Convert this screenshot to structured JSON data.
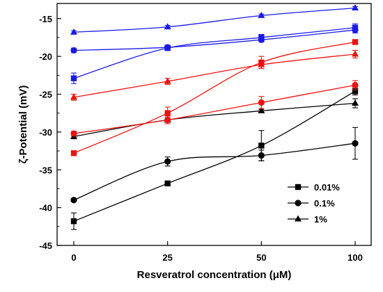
{
  "chart_data": {
    "type": "line",
    "xlabel": "Resveratrol concentration (μM)",
    "ylabel": "ζ-Potential (mV)",
    "x_ticks": [
      "0",
      "25",
      "50",
      "100"
    ],
    "y_ticks": [
      "-45",
      "-40",
      "-35",
      "-30",
      "-25",
      "-20",
      "-15"
    ],
    "ylim": [
      -45,
      -13
    ],
    "x_scale": "categorical",
    "grid": false,
    "legend": {
      "position": "bottom-right",
      "entries": [
        {
          "label": "0.01%",
          "marker": "square"
        },
        {
          "label": "0.1%",
          "marker": "circle"
        },
        {
          "label": "1%",
          "marker": "triangle"
        }
      ]
    },
    "colors": {
      "black": "#000000",
      "red": "#ee1111",
      "blue": "#1a1ae6"
    },
    "x": [
      0,
      25,
      50,
      100
    ],
    "series": [
      {
        "color": "black",
        "marker": "square",
        "values": [
          -41.8,
          -36.8,
          -31.8,
          -24.6
        ],
        "errors": [
          1.1,
          0.3,
          2.0,
          0.5
        ]
      },
      {
        "color": "black",
        "marker": "circle",
        "values": [
          -39.0,
          -33.9,
          -33.1,
          -31.5
        ],
        "errors": [
          0.2,
          0.6,
          0.7,
          2.1
        ]
      },
      {
        "color": "black",
        "marker": "triangle",
        "values": [
          -30.6,
          -28.4,
          -27.2,
          -26.2
        ],
        "errors": [
          0.3,
          0.3,
          0.2,
          0.6
        ]
      },
      {
        "color": "red",
        "marker": "square",
        "values": [
          -32.8,
          -27.5,
          -20.8,
          -18.1
        ],
        "errors": [
          0.3,
          0.8,
          0.8,
          0.3
        ]
      },
      {
        "color": "red",
        "marker": "circle",
        "values": [
          -30.2,
          -28.4,
          -26.1,
          -23.8
        ],
        "errors": [
          0.3,
          0.5,
          0.8,
          0.6
        ]
      },
      {
        "color": "red",
        "marker": "triangle",
        "values": [
          -25.4,
          -23.3,
          -21.1,
          -19.7
        ],
        "errors": [
          0.4,
          0.4,
          0.5,
          0.5
        ]
      },
      {
        "color": "blue",
        "marker": "square",
        "values": [
          -22.9,
          -18.9,
          -17.5,
          -16.2
        ],
        "errors": [
          0.7,
          0.3,
          0.4,
          0.5
        ]
      },
      {
        "color": "blue",
        "marker": "circle",
        "values": [
          -19.2,
          -18.8,
          -17.8,
          -16.5
        ],
        "errors": [
          0.3,
          0.3,
          0.3,
          0.4
        ]
      },
      {
        "color": "blue",
        "marker": "triangle",
        "values": [
          -16.8,
          -16.1,
          -14.6,
          -13.6
        ],
        "errors": [
          0.2,
          0.2,
          0.2,
          0.2
        ]
      }
    ]
  }
}
